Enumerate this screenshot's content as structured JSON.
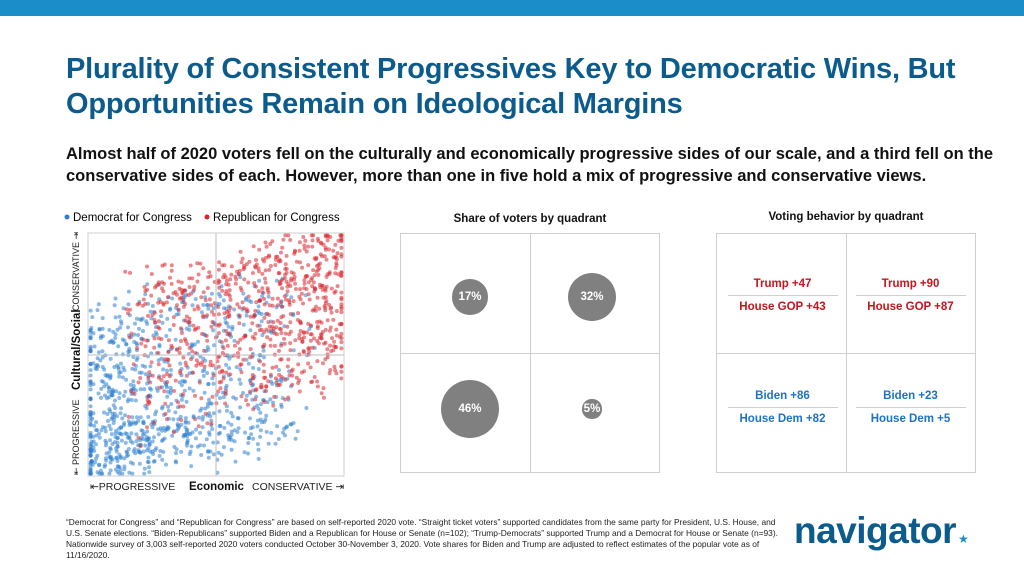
{
  "colors": {
    "top_bar": "#1b8ec9",
    "title": "#0b5b8c",
    "democrat": "#2e7fd0",
    "republican": "#d8262e",
    "rep_text": "#c2161d",
    "dem_text": "#1e72c4",
    "bubble": "#808080",
    "logo": "#0b5b8c",
    "logo_star": "#1b8ec9"
  },
  "title": "Plurality of Consistent Progressives Key to Democratic Wins, But Opportunities Remain on Ideological Margins",
  "subtitle": "Almost half of 2020 voters fell on the culturally and economically progressive sides of our scale, and a third fell on the conservative sides of each. However, more than one in five hold a mix of progressive and conservative views.",
  "chart_data": [
    {
      "type": "scatter",
      "title": "",
      "legend": [
        {
          "name": "Democrat for Congress",
          "color": "#2e7fd0"
        },
        {
          "name": "Republican for Congress",
          "color": "#d8262e"
        }
      ],
      "legend_position": "top",
      "xlabel": "Economic",
      "x_left_label": "⇤PROGRESSIVE",
      "x_right_label": "CONSERVATIVE ⇥",
      "ylabel": "Cultural/Social",
      "y_bottom_label": "⇤ PROGRESSIVE",
      "y_top_label": "CONSERVATIVE ⇥",
      "xlim": [
        -1,
        1
      ],
      "ylim": [
        -1,
        1
      ],
      "midlines": true,
      "series": [
        {
          "name": "Democrat for Congress",
          "approx_points": 1400,
          "density_center": [
            -0.8,
            -0.8
          ]
        },
        {
          "name": "Republican for Congress",
          "approx_points": 1200,
          "density_center": [
            0.6,
            0.75
          ]
        }
      ]
    },
    {
      "type": "bubble",
      "title": "Share of voters by quadrant",
      "quadrants": [
        {
          "position": "cultural conservative / economic progressive",
          "label": "17%",
          "value": 17
        },
        {
          "position": "cultural conservative / economic conservative",
          "label": "32%",
          "value": 32
        },
        {
          "position": "cultural progressive / economic progressive",
          "label": "46%",
          "value": 46
        },
        {
          "position": "cultural progressive / economic conservative",
          "label": "5%",
          "value": 5
        }
      ]
    },
    {
      "type": "table",
      "title": "Voting behavior by quadrant",
      "quadrants": [
        {
          "position": "top-left",
          "top": "Trump +47",
          "bottom": "House GOP +43",
          "party": "rep"
        },
        {
          "position": "top-right",
          "top": "Trump +90",
          "bottom": "House GOP +87",
          "party": "rep"
        },
        {
          "position": "bottom-left",
          "top": "Biden +86",
          "bottom": "House Dem +82",
          "party": "dem"
        },
        {
          "position": "bottom-right",
          "top": "Biden +23",
          "bottom": "House Dem +5",
          "party": "dem"
        }
      ]
    }
  ],
  "footnote": "“Democrat for Congress” and “Republican for Congress” are based on self-reported 2020 vote. “Straight ticket voters” supported candidates from the same party for President, U.S. House, and U.S. Senate elections. “Biden-Republicans” supported Biden and a Republican for House or Senate (n=102); “Trump-Democrats” supported Trump and a Democrat for House or Senate (n=93). Nationwide survey of 3,003 self-reported 2020 voters conducted October 30-November 3, 2020. Vote shares for Biden and Trump are adjusted to reflect estimates of the popular vote as of 11/16/2020.",
  "logo": {
    "text": "navigator",
    "star": "★"
  }
}
